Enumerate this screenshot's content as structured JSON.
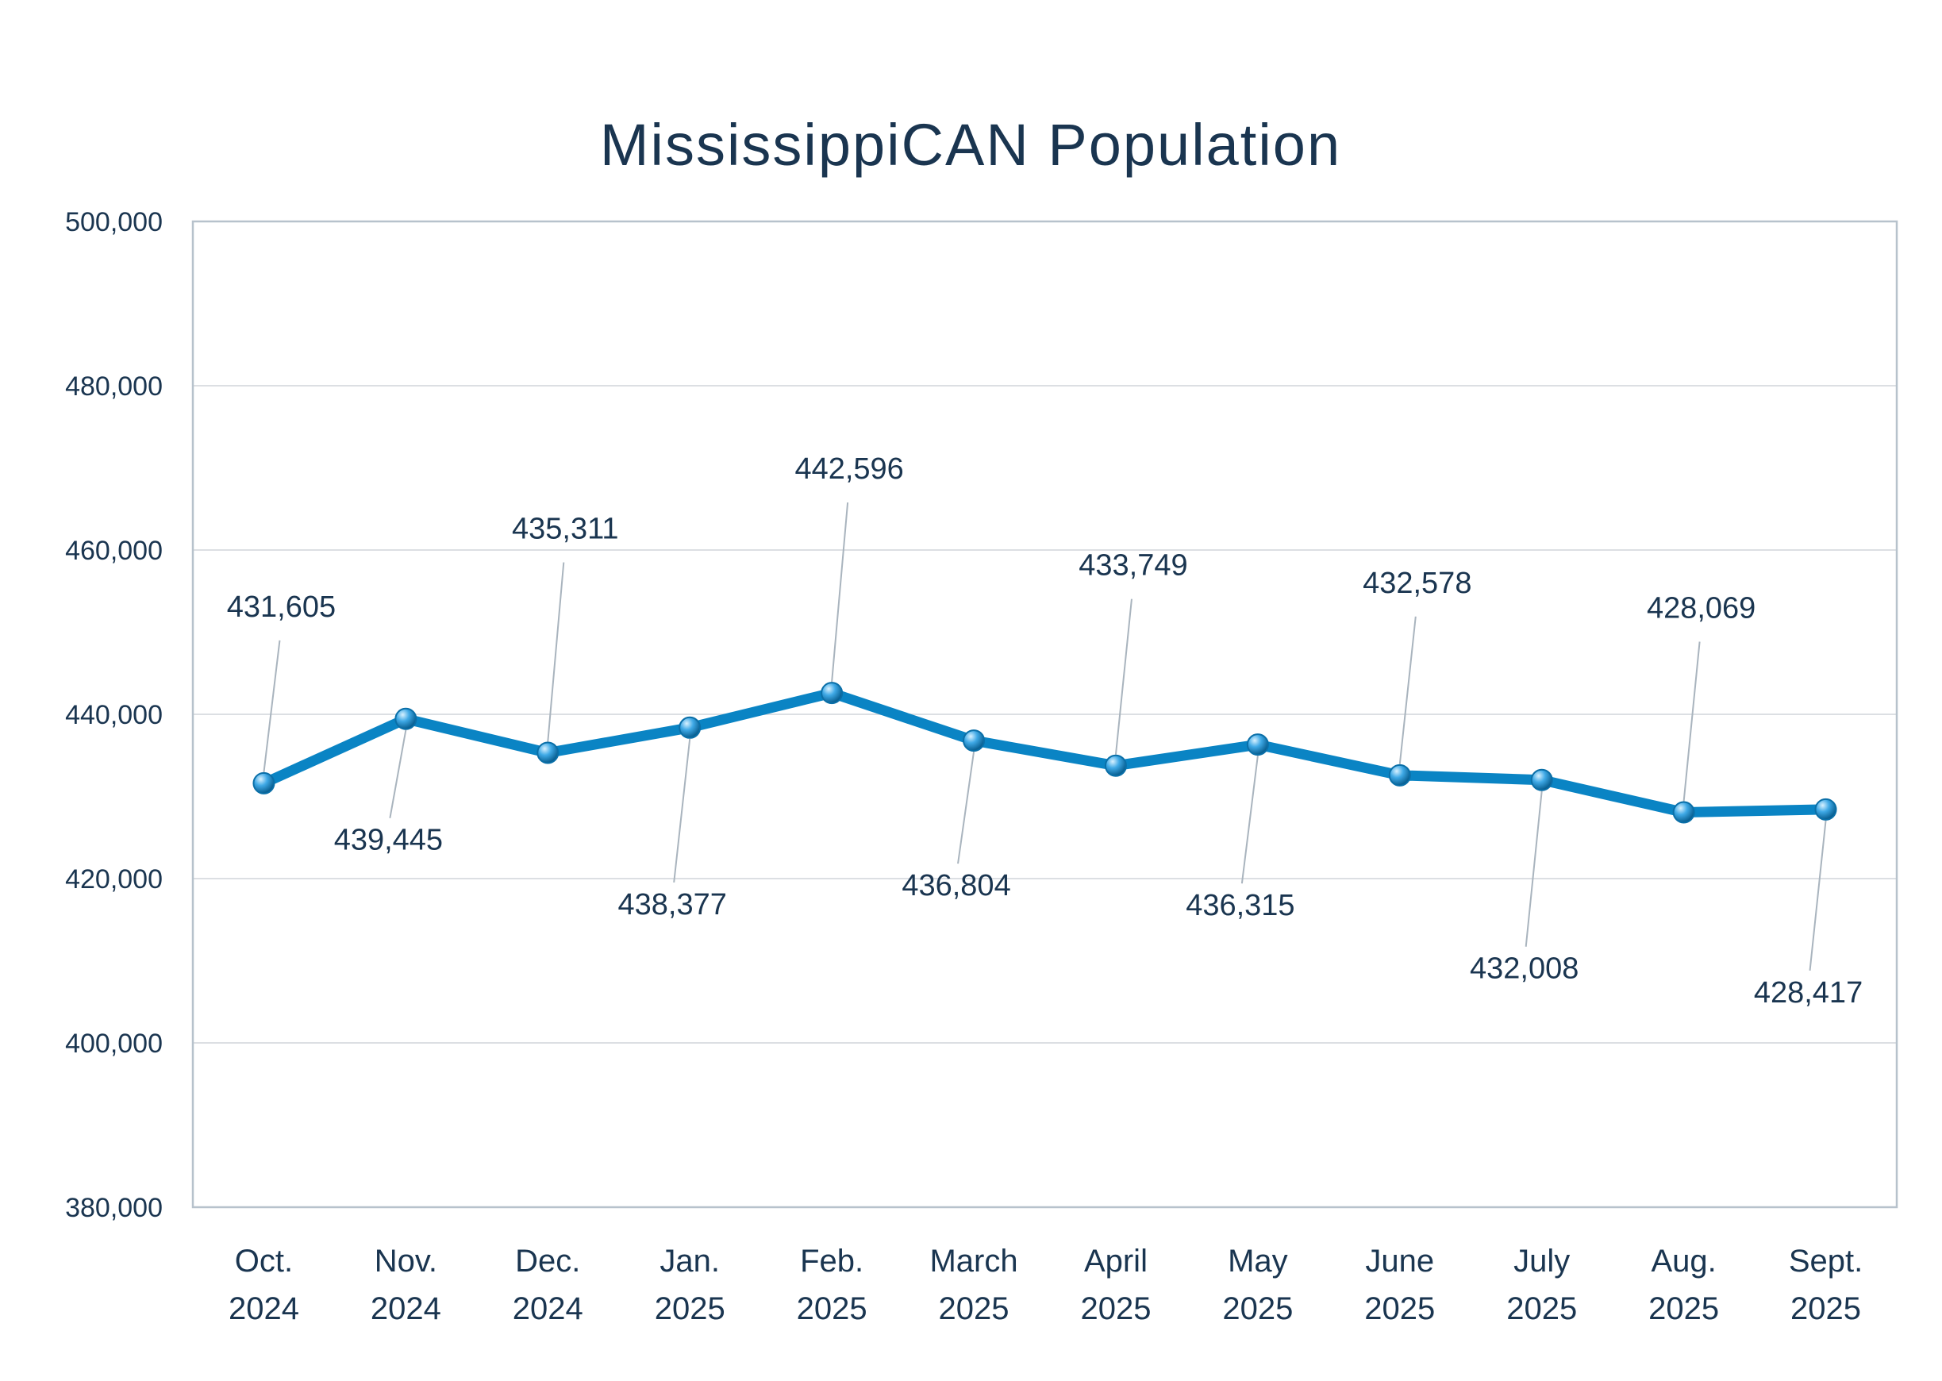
{
  "colors": {
    "text": "#1a3550",
    "line": "#0a84c4",
    "marker_light": "#8fd3f7",
    "marker_dark": "#0a6fa8",
    "grid": "#dcdfe3",
    "frame": "#b7c2cc",
    "leader": "#a9b4be"
  },
  "chart_data": {
    "type": "line",
    "title": "MississippiCAN Population",
    "categories": [
      [
        "Oct.",
        "2024"
      ],
      [
        "Nov.",
        "2024"
      ],
      [
        "Dec.",
        "2024"
      ],
      [
        "Jan.",
        "2025"
      ],
      [
        "Feb.",
        "2025"
      ],
      [
        "March",
        "2025"
      ],
      [
        "April",
        "2025"
      ],
      [
        "May",
        "2025"
      ],
      [
        "June",
        "2025"
      ],
      [
        "July",
        "2025"
      ],
      [
        "Aug.",
        "2025"
      ],
      [
        "Sept.",
        "2025"
      ]
    ],
    "values": [
      431605,
      439445,
      435311,
      438377,
      442596,
      436804,
      433749,
      436315,
      432578,
      432008,
      428069,
      428417
    ],
    "value_labels": [
      "431,605",
      "439,445",
      "435,311",
      "438,377",
      "442,596",
      "436,804",
      "433,749",
      "436,315",
      "432,578",
      "432,008",
      "428,069",
      "428,417"
    ],
    "label_positions": [
      "above",
      "below",
      "above",
      "below",
      "above",
      "below",
      "above",
      "below",
      "above",
      "below",
      "above",
      "below"
    ],
    "ylim": [
      380000,
      500000
    ],
    "yticks": [
      380000,
      400000,
      420000,
      440000,
      460000,
      480000,
      500000
    ],
    "ytick_labels": [
      "380,000",
      "400,000",
      "420,000",
      "440,000",
      "460,000",
      "480,000",
      "500,000"
    ],
    "grid": true,
    "legend": "none",
    "xlabel": "",
    "ylabel": ""
  }
}
